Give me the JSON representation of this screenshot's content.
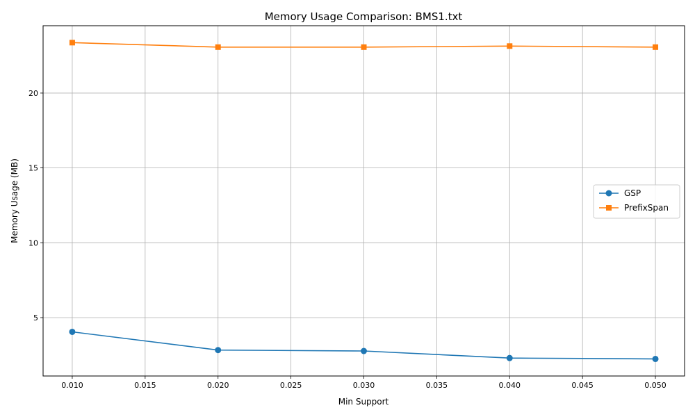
{
  "chart_data": {
    "type": "line",
    "title": "Memory Usage Comparison: BMS1.txt",
    "xlabel": "Min Support",
    "ylabel": "Memory Usage (MB)",
    "xlim": [
      0.008,
      0.052
    ],
    "ylim": [
      1.1,
      24.5
    ],
    "xticks": [
      0.01,
      0.015,
      0.02,
      0.025,
      0.03,
      0.035,
      0.04,
      0.045,
      0.05
    ],
    "xtick_labels": [
      "0.010",
      "0.015",
      "0.020",
      "0.025",
      "0.030",
      "0.035",
      "0.040",
      "0.045",
      "0.050"
    ],
    "yticks": [
      5,
      10,
      15,
      20
    ],
    "ytick_labels": [
      "5",
      "10",
      "15",
      "20"
    ],
    "grid": true,
    "legend_position": "center-right",
    "series": [
      {
        "name": "GSP",
        "color": "#1f77b4",
        "marker": "circle",
        "x": [
          0.01,
          0.02,
          0.03,
          0.04,
          0.05
        ],
        "values": [
          4.05,
          2.83,
          2.77,
          2.3,
          2.24
        ]
      },
      {
        "name": "PrefixSpan",
        "color": "#ff7f0e",
        "marker": "square",
        "x": [
          0.01,
          0.02,
          0.03,
          0.04,
          0.05
        ],
        "values": [
          23.37,
          23.07,
          23.07,
          23.14,
          23.07
        ]
      }
    ]
  }
}
